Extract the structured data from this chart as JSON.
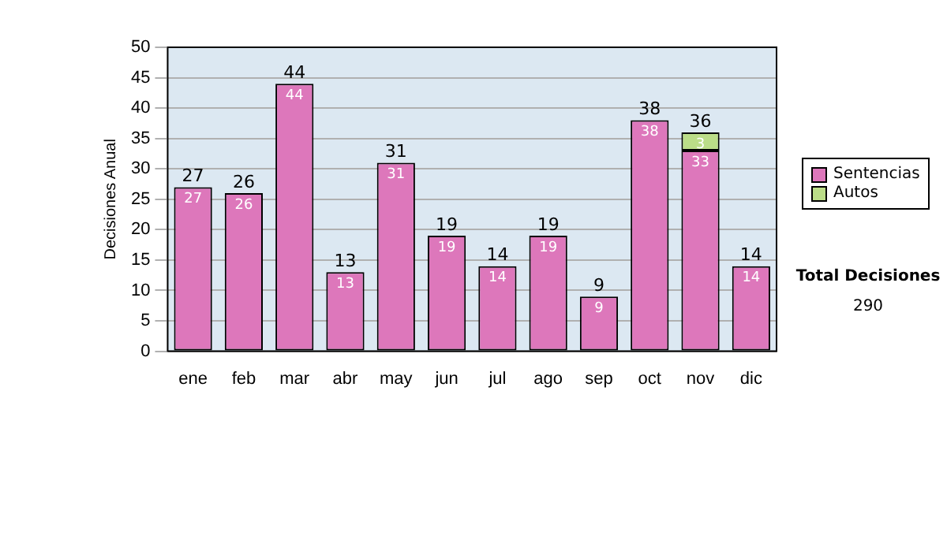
{
  "chart_data": {
    "type": "bar",
    "stacked": true,
    "ylabel": "Decisiones Anual",
    "categories": [
      "ene",
      "feb",
      "mar",
      "abr",
      "may",
      "jun",
      "jul",
      "ago",
      "sep",
      "oct",
      "nov",
      "dic"
    ],
    "series": [
      {
        "name": "Sentencias",
        "color": "#dd77bb",
        "values": [
          27,
          26,
          44,
          13,
          31,
          19,
          14,
          19,
          9,
          38,
          33,
          14
        ]
      },
      {
        "name": "Autos",
        "color": "#bbdd88",
        "values": [
          null,
          null,
          null,
          null,
          null,
          null,
          null,
          null,
          null,
          null,
          3,
          null
        ]
      }
    ],
    "totals": [
      "27",
      "26",
      "44",
      "13",
      "31",
      "19",
      "14",
      "19",
      "9",
      "38",
      "36",
      "14"
    ],
    "data_labels": true,
    "ylim": [
      0,
      50
    ],
    "yticks": [
      0,
      5,
      10,
      15,
      20,
      25,
      30,
      35,
      40,
      45,
      50
    ],
    "grid": "y",
    "legend": "right",
    "annotations": [
      "Total Decisiones",
      "290"
    ]
  }
}
